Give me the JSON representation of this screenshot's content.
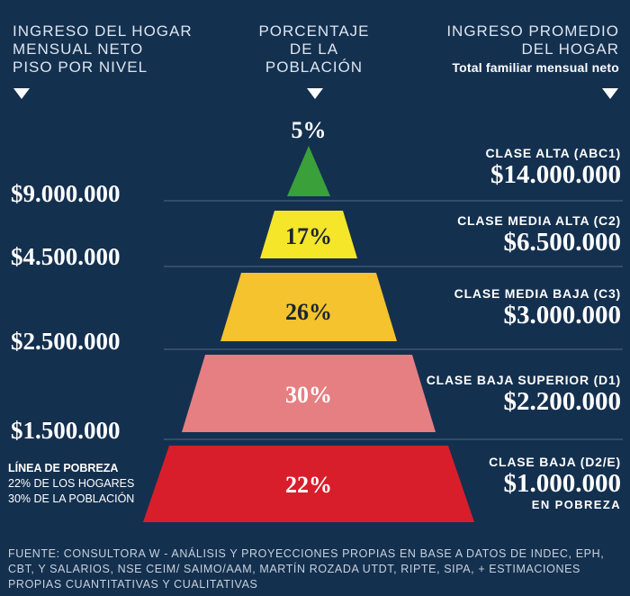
{
  "headers": {
    "left": [
      "INGRESO DEL HOGAR",
      "MENSUAL NETO",
      "PISO POR NIVEL"
    ],
    "center": [
      "PORCENTAJE",
      "DE LA",
      "POBLACIÓN"
    ],
    "right": [
      "INGRESO PROMEDIO",
      "DEL HOGAR"
    ],
    "right_sub": "Total familiar mensual neto"
  },
  "thresholds": [
    "$9.000.000",
    "$4.500.000",
    "$2.500.000",
    "$1.500.000"
  ],
  "levels": [
    {
      "percent": "5%",
      "class_name": "CLASE ALTA (ABC1)",
      "amount": "$14.000.000",
      "color": "#3aa03a",
      "percent_color": "#ffffff"
    },
    {
      "percent": "17%",
      "class_name": "CLASE MEDIA ALTA (C2)",
      "amount": "$6.500.000",
      "color": "#f5e62a",
      "percent_color": "#1c2530"
    },
    {
      "percent": "26%",
      "class_name": "CLASE MEDIA BAJA (C3)",
      "amount": "$3.000.000",
      "color": "#f4c32d",
      "percent_color": "#1c2530"
    },
    {
      "percent": "30%",
      "class_name": "CLASE BAJA SUPERIOR (D1)",
      "amount": "$2.200.000",
      "color": "#e67f82",
      "percent_color": "#ffffff"
    },
    {
      "percent": "22%",
      "class_name": "CLASE BAJA (D2/E)",
      "amount": "$1.000.000",
      "color": "#d81e2b",
      "percent_color": "#ffffff",
      "note": "EN POBREZA"
    }
  ],
  "poverty_line": {
    "title": "LÍNEA DE POBREZA",
    "lines": [
      "22% DE LOS HOGARES",
      "30% DE LA POBLACIÓN"
    ]
  },
  "source": "FUENTE: CONSULTORA W - ANÁLISIS Y PROYECCIONES PROPIAS EN BASE A DATOS DE INDEC, EPH, CBT, Y SALARIOS, NSE CEIM/ SAIMO/AAM, MARTÍN ROZADA UTDT, RIPTE, SIPA, + ESTIMACIONES PROPIAS CUANTITATIVAS Y CUALITATIVAS"
}
